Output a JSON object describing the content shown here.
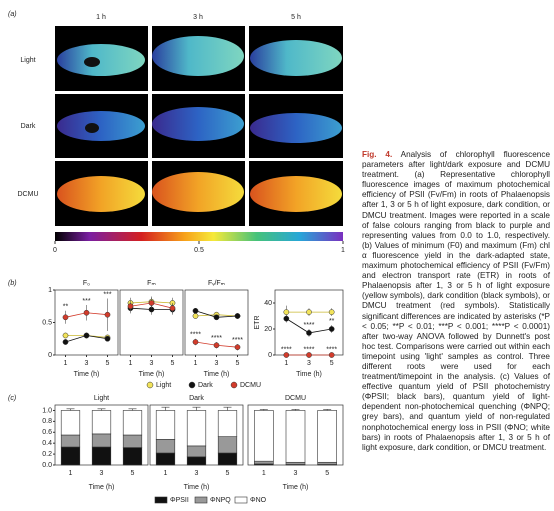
{
  "figure": {
    "panel_labels": [
      "(a)",
      "(b)",
      "(c)"
    ],
    "panel_a": {
      "columns": [
        "1 h",
        "3 h",
        "5 h"
      ],
      "rows": [
        "Light",
        "Dark",
        "DCMU"
      ],
      "colorbar_ticks": [
        0,
        0.5,
        1
      ]
    },
    "legend_b": [
      {
        "name": "Light",
        "color": "#f2e35a"
      },
      {
        "name": "Dark",
        "color": "#111111"
      },
      {
        "name": "DCMU",
        "color": "#d23b2b"
      }
    ],
    "legend_c": [
      {
        "name": "ΦPSII",
        "color": "#111111"
      },
      {
        "name": "ΦNPQ",
        "color": "#999999"
      },
      {
        "name": "ΦNO",
        "color": "#ffffff"
      }
    ]
  },
  "chart_data": [
    {
      "type": "line",
      "title": "F₀",
      "x": [
        1,
        3,
        5
      ],
      "xlim": [
        0,
        6
      ],
      "xticks": [
        1,
        3,
        5
      ],
      "xlabel": "Time (h)",
      "ylim": [
        0,
        1
      ],
      "yticks": [
        0,
        0.5,
        1
      ],
      "series": [
        {
          "color": "#f2e35a",
          "values": [
            0.3,
            0.3,
            0.27
          ],
          "errors": [
            0.03,
            0.03,
            0.03
          ]
        },
        {
          "color": "#111111",
          "values": [
            0.2,
            0.3,
            0.25
          ],
          "errors": [
            0.03,
            0.03,
            0.03
          ]
        },
        {
          "color": "#d23b2b",
          "values": [
            0.58,
            0.65,
            0.62
          ],
          "errors": [
            0.1,
            0.12,
            0.25
          ],
          "significance": [
            "**",
            "***",
            "***"
          ]
        }
      ]
    },
    {
      "type": "line",
      "title": "Fₘ",
      "x": [
        1,
        3,
        5
      ],
      "xlim": [
        0,
        6
      ],
      "xticks": [
        1,
        3,
        5
      ],
      "xlabel": "Time (h)",
      "ylim": [
        0,
        1
      ],
      "series": [
        {
          "color": "#f2e35a",
          "values": [
            0.8,
            0.82,
            0.8
          ],
          "errors": [
            0.08,
            0.08,
            0.08
          ]
        },
        {
          "color": "#111111",
          "values": [
            0.72,
            0.7,
            0.7
          ],
          "errors": [
            0.08,
            0.08,
            0.08
          ]
        },
        {
          "color": "#d23b2b",
          "values": [
            0.75,
            0.8,
            0.72
          ],
          "errors": [
            0.08,
            0.08,
            0.08
          ]
        }
      ]
    },
    {
      "type": "line",
      "title": "Fᵥ/Fₘ",
      "x": [
        1,
        3,
        5
      ],
      "xlim": [
        0,
        6
      ],
      "xticks": [
        1,
        3,
        5
      ],
      "xlabel": "Time (h)",
      "ylim": [
        0,
        1
      ],
      "series": [
        {
          "color": "#f2e35a",
          "values": [
            0.6,
            0.62,
            0.6
          ],
          "errors": [
            0.03,
            0.03,
            0.03
          ]
        },
        {
          "color": "#111111",
          "values": [
            0.68,
            0.58,
            0.6
          ],
          "errors": [
            0.03,
            0.03,
            0.03
          ]
        },
        {
          "color": "#d23b2b",
          "values": [
            0.2,
            0.15,
            0.12
          ],
          "errors": [
            0.05,
            0.05,
            0.05
          ],
          "significance": [
            "****",
            "****",
            "****"
          ]
        }
      ]
    },
    {
      "type": "line",
      "ylabel": "ETR",
      "x": [
        1,
        3,
        5
      ],
      "xlim": [
        0,
        6
      ],
      "xticks": [
        1,
        3,
        5
      ],
      "xlabel": "Time (h)",
      "ylim": [
        0,
        50
      ],
      "yticks": [
        0,
        20,
        40
      ],
      "series": [
        {
          "color": "#f2e35a",
          "values": [
            33,
            33,
            33
          ],
          "errors": [
            5,
            3,
            3
          ]
        },
        {
          "color": "#111111",
          "values": [
            28,
            17,
            20
          ],
          "errors": [
            3,
            3,
            3
          ],
          "significance": [
            null,
            "****",
            "**"
          ]
        },
        {
          "color": "#d23b2b",
          "values": [
            0,
            0,
            0
          ],
          "errors": [
            1,
            1,
            1
          ],
          "significance": [
            "****",
            "****",
            "****"
          ]
        }
      ]
    },
    {
      "type": "bar",
      "title": "Light",
      "categories": [
        "1",
        "3",
        "5"
      ],
      "xlabel": "Time (h)",
      "ylim": [
        0,
        1.1
      ],
      "yticks": [
        {
          "value": 0,
          "label": "0.0"
        },
        {
          "value": 0.2,
          "label": "0.2"
        },
        {
          "value": 0.4,
          "label": "0.4"
        },
        {
          "value": 0.6,
          "label": "0.6"
        },
        {
          "value": 0.8,
          "label": "0.8"
        },
        {
          "value": 1,
          "label": "1.0"
        }
      ],
      "series": [
        {
          "color": "#111111",
          "values": [
            0.33,
            0.33,
            0.32
          ],
          "errors": [
            0.03,
            0.03,
            0.03
          ]
        },
        {
          "color": "#999999",
          "values": [
            0.22,
            0.24,
            0.23
          ],
          "errors": [
            0.04,
            0.04,
            0.04
          ]
        },
        {
          "color": "#ffffff",
          "values": [
            0.45,
            0.43,
            0.45
          ],
          "errors": [
            0.03,
            0.03,
            0.03
          ]
        }
      ]
    },
    {
      "type": "bar",
      "title": "Dark",
      "categories": [
        "1",
        "3",
        "5"
      ],
      "xlabel": "Time (h)",
      "ylim": [
        0,
        1.1
      ],
      "series": [
        {
          "color": "#111111",
          "values": [
            0.22,
            0.15,
            0.22
          ],
          "errors": [
            0.03,
            0.03,
            0.03
          ]
        },
        {
          "color": "#999999",
          "values": [
            0.25,
            0.2,
            0.3
          ],
          "errors": [
            0.05,
            0.05,
            0.05
          ]
        },
        {
          "color": "#ffffff",
          "values": [
            0.53,
            0.65,
            0.48
          ],
          "errors": [
            0.06,
            0.06,
            0.06
          ]
        }
      ]
    },
    {
      "type": "bar",
      "title": "DCMU",
      "categories": [
        "1",
        "3",
        "5"
      ],
      "xlabel": "Time (h)",
      "ylim": [
        0,
        1.1
      ],
      "series": [
        {
          "color": "#111111",
          "values": [
            0.02,
            0.01,
            0.01
          ],
          "errors": [
            0.01,
            0.01,
            0.01
          ]
        },
        {
          "color": "#999999",
          "values": [
            0.05,
            0.04,
            0.04
          ],
          "errors": [
            0.01,
            0.01,
            0.01
          ]
        },
        {
          "color": "#ffffff",
          "values": [
            0.93,
            0.95,
            0.95
          ],
          "errors": [
            0.02,
            0.02,
            0.02
          ]
        }
      ]
    }
  ],
  "caption": {
    "label": "Fig. 4.",
    "text": "Analysis of chlorophyll fluorescence parameters after light/dark exposure and DCMU treatment. (a) Representative chlorophyll fluorescence images of maximum photochemical efficiency of PSII (Fv/Fm) in roots of Phalaenopsis after 1, 3 or 5 h of light exposure, dark condition, or DMCU treatment. Images were reported in a scale of false colours ranging from black to purple and representing values from 0.0 to 1.0, respectively. (b) Values of minimum (F0) and maximum (Fm) chl α fluorescence yield in the dark-adapted state, maximum photochemical efficiency of PSII (Fv/Fm) and electron transport rate (ETR) in roots of Phalaenopsis after 1, 3 or 5 h of light exposure (yellow symbols), dark condition (black symbols), or DMCU treatment (red symbols). Statistically significant differences are indicated by asterisks (*P < 0.05; **P < 0.01; ***P < 0.001; ****P < 0.0001) after two-way ANOVA followed by Dunnett's post hoc test. Comparisons were carried out within each timepoint using 'light' samples as control. Three different roots were used for each treatment/timepoint in the analysis. (c) Values of effective quantum yield of PSII photochemistry (ΦPSII; black bars), quantum yield of light-dependent non-photochemical quenching (ΦNPQ; grey bars), and quantum yield of non-regulated nonphotochemical energy loss in PSII (ΦNO; white bars) in roots of Phalaenopsis after 1, 3 or 5 h of light exposure, dark condition, or DMCU treatment."
  }
}
